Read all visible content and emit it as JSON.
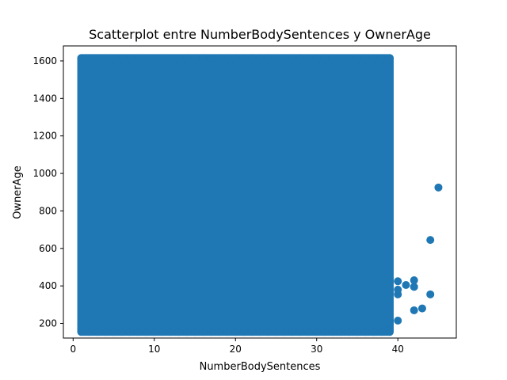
{
  "chart_data": {
    "type": "scatter",
    "title": "Scatterplot entre NumberBodySentences y OwnerAge",
    "xlabel": "NumberBodySentences",
    "ylabel": "OwnerAge",
    "xlim": [
      -1.2,
      47.2
    ],
    "ylim": [
      122,
      1680
    ],
    "xticks": [
      0,
      10,
      20,
      30,
      40
    ],
    "yticks": [
      200,
      400,
      600,
      800,
      1000,
      1200,
      1400,
      1600
    ],
    "grid": false,
    "color": "#1f77b4",
    "dense_region": {
      "x_from": 1,
      "x_to": 39,
      "y_from": 155,
      "y_to": 1615
    },
    "points": [
      {
        "x": 1,
        "y": 170
      },
      {
        "x": 1,
        "y": 195
      },
      {
        "x": 39,
        "y": 170
      },
      {
        "x": 39,
        "y": 200
      },
      {
        "x": 39,
        "y": 215
      },
      {
        "x": 40,
        "y": 215
      },
      {
        "x": 40,
        "y": 355
      },
      {
        "x": 40,
        "y": 380
      },
      {
        "x": 40,
        "y": 425
      },
      {
        "x": 41,
        "y": 405
      },
      {
        "x": 42,
        "y": 270
      },
      {
        "x": 42,
        "y": 395
      },
      {
        "x": 42,
        "y": 430
      },
      {
        "x": 43,
        "y": 280
      },
      {
        "x": 44,
        "y": 355
      },
      {
        "x": 44,
        "y": 645
      },
      {
        "x": 45,
        "y": 925
      }
    ]
  }
}
